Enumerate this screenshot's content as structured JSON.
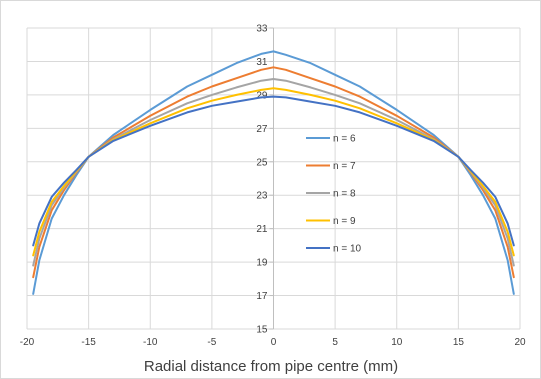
{
  "chart_data": {
    "type": "line",
    "title": "",
    "xlabel": "Radial distance from pipe centre (mm)",
    "ylabel": "",
    "xlim": [
      -20,
      20
    ],
    "ylim": [
      15,
      33
    ],
    "xticks": [
      -20,
      -15,
      -10,
      -5,
      0,
      5,
      10,
      15,
      20
    ],
    "yticks": [
      15,
      17,
      19,
      21,
      23,
      25,
      27,
      29,
      31,
      33
    ],
    "grid": true,
    "y_axis_position": "x = 0",
    "legend_position": "center-right",
    "series": [
      {
        "name": "n = 6",
        "color": "#5B9BD5",
        "x": [
          -19.5,
          -19,
          -18,
          -17,
          -16,
          -15,
          -13,
          -10,
          -7,
          -5,
          -3,
          -1,
          0,
          1,
          3,
          5,
          7,
          10,
          13,
          15,
          16,
          17,
          18,
          19,
          19.5
        ],
        "y": [
          17.1,
          19.1,
          21.6,
          23.0,
          24.2,
          25.3,
          26.6,
          28.1,
          29.5,
          30.2,
          30.9,
          31.45,
          31.6,
          31.4,
          30.9,
          30.2,
          29.5,
          28.1,
          26.6,
          25.3,
          24.2,
          23.0,
          21.6,
          19.1,
          17.1
        ]
      },
      {
        "name": "n = 7",
        "color": "#ED7D31",
        "x": [
          -19.5,
          -19,
          -18,
          -17,
          -16,
          -15,
          -13,
          -10,
          -7,
          -5,
          -3,
          -1,
          0,
          1,
          3,
          5,
          7,
          10,
          13,
          15,
          16,
          17,
          18,
          19,
          19.5
        ],
        "y": [
          18.1,
          19.9,
          22.1,
          23.3,
          24.35,
          25.3,
          26.45,
          27.75,
          28.9,
          29.5,
          30.0,
          30.5,
          30.65,
          30.5,
          30.0,
          29.5,
          28.9,
          27.75,
          26.45,
          25.3,
          24.35,
          23.3,
          22.1,
          19.9,
          18.1
        ]
      },
      {
        "name": "n = 8",
        "color": "#A5A5A5",
        "x": [
          -19.5,
          -19,
          -18,
          -17,
          -16,
          -15,
          -13,
          -10,
          -7,
          -5,
          -3,
          -1,
          0,
          1,
          3,
          5,
          7,
          10,
          13,
          15,
          16,
          17,
          18,
          19,
          19.5
        ],
        "y": [
          18.8,
          20.4,
          22.4,
          23.45,
          24.4,
          25.3,
          26.35,
          27.5,
          28.5,
          29.0,
          29.45,
          29.85,
          29.95,
          29.85,
          29.45,
          29.0,
          28.5,
          27.5,
          26.35,
          25.3,
          24.4,
          23.45,
          22.4,
          20.4,
          18.8
        ]
      },
      {
        "name": "n = 9",
        "color": "#FFC000",
        "x": [
          -19.5,
          -19,
          -18,
          -17,
          -16,
          -15,
          -13,
          -10,
          -7,
          -5,
          -3,
          -1,
          0,
          1,
          3,
          5,
          7,
          10,
          13,
          15,
          16,
          17,
          18,
          19,
          19.5
        ],
        "y": [
          19.4,
          20.8,
          22.6,
          23.55,
          24.45,
          25.3,
          26.3,
          27.3,
          28.2,
          28.65,
          29.0,
          29.3,
          29.4,
          29.3,
          29.0,
          28.65,
          28.2,
          27.3,
          26.3,
          25.3,
          24.45,
          23.55,
          22.6,
          20.8,
          19.4
        ]
      },
      {
        "name": "n = 10",
        "color": "#4472C4",
        "x": [
          -19.5,
          -19,
          -18,
          -17,
          -16,
          -15,
          -13,
          -10,
          -7,
          -5,
          -3,
          -1,
          0,
          1,
          3,
          5,
          7,
          10,
          13,
          15,
          16,
          17,
          18,
          19,
          19.5
        ],
        "y": [
          20.0,
          21.3,
          22.9,
          23.75,
          24.5,
          25.3,
          26.25,
          27.15,
          27.95,
          28.35,
          28.6,
          28.85,
          28.9,
          28.85,
          28.6,
          28.35,
          27.95,
          27.15,
          26.25,
          25.3,
          24.5,
          23.75,
          22.9,
          21.3,
          20.0
        ]
      }
    ]
  }
}
